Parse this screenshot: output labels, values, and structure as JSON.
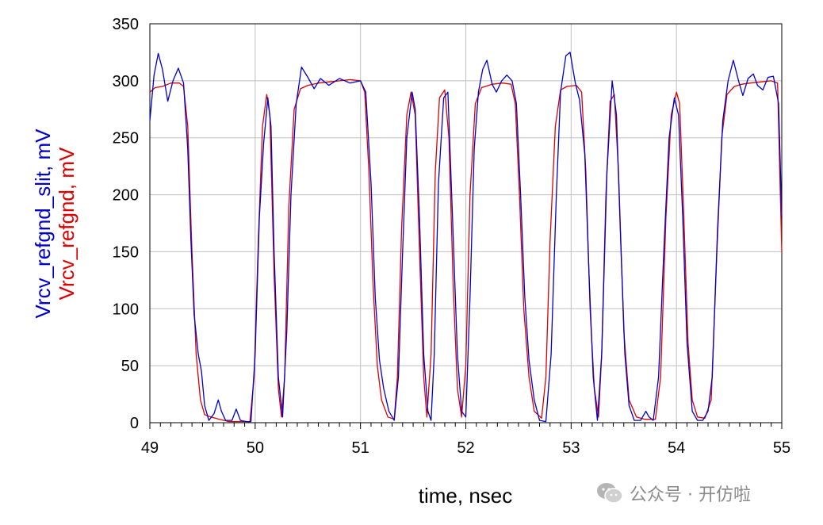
{
  "chart_data": {
    "type": "line",
    "xlabel": "time, nsec",
    "ylabels": [
      "Vrcv_refgnd_slit, mV",
      "Vrcv_refgnd, mV"
    ],
    "xlim": [
      49,
      55
    ],
    "ylim": [
      0,
      350
    ],
    "xticks": [
      "49",
      "50",
      "51",
      "52",
      "53",
      "54",
      "55"
    ],
    "yticks": [
      "0",
      "50",
      "100",
      "150",
      "200",
      "250",
      "300",
      "350"
    ],
    "grid": true,
    "series": [
      {
        "name": "Vrcv_refgnd_slit, mV",
        "color": "#0000cc",
        "points": [
          [
            49.0,
            265
          ],
          [
            49.04,
            305
          ],
          [
            49.08,
            324
          ],
          [
            49.12,
            310
          ],
          [
            49.17,
            282
          ],
          [
            49.22,
            300
          ],
          [
            49.27,
            311
          ],
          [
            49.32,
            298
          ],
          [
            49.36,
            240
          ],
          [
            49.39,
            160
          ],
          [
            49.42,
            95
          ],
          [
            49.46,
            60
          ],
          [
            49.49,
            45
          ],
          [
            49.52,
            15
          ],
          [
            49.56,
            2
          ],
          [
            49.61,
            8
          ],
          [
            49.65,
            20
          ],
          [
            49.68,
            10
          ],
          [
            49.72,
            2
          ],
          [
            49.78,
            2
          ],
          [
            49.82,
            12
          ],
          [
            49.86,
            2
          ],
          [
            49.92,
            1
          ],
          [
            49.96,
            1
          ],
          [
            50.0,
            60
          ],
          [
            50.04,
            180
          ],
          [
            50.08,
            245
          ],
          [
            50.12,
            285
          ],
          [
            50.15,
            260
          ],
          [
            50.18,
            150
          ],
          [
            50.22,
            40
          ],
          [
            50.26,
            5
          ],
          [
            50.3,
            80
          ],
          [
            50.34,
            200
          ],
          [
            50.39,
            280
          ],
          [
            50.44,
            312
          ],
          [
            50.5,
            303
          ],
          [
            50.56,
            293
          ],
          [
            50.62,
            302
          ],
          [
            50.7,
            296
          ],
          [
            50.8,
            302
          ],
          [
            50.9,
            298
          ],
          [
            51.0,
            300
          ],
          [
            51.05,
            290
          ],
          [
            51.1,
            210
          ],
          [
            51.14,
            110
          ],
          [
            51.18,
            55
          ],
          [
            51.22,
            30
          ],
          [
            51.27,
            10
          ],
          [
            51.32,
            2
          ],
          [
            51.36,
            40
          ],
          [
            51.4,
            150
          ],
          [
            51.44,
            250
          ],
          [
            51.49,
            290
          ],
          [
            51.52,
            275
          ],
          [
            51.56,
            180
          ],
          [
            51.6,
            60
          ],
          [
            51.64,
            10
          ],
          [
            51.67,
            2
          ],
          [
            51.7,
            60
          ],
          [
            51.74,
            210
          ],
          [
            51.79,
            285
          ],
          [
            51.83,
            290
          ],
          [
            51.87,
            190
          ],
          [
            51.92,
            60
          ],
          [
            51.96,
            10
          ],
          [
            52.0,
            5
          ],
          [
            52.04,
            110
          ],
          [
            52.08,
            240
          ],
          [
            52.12,
            290
          ],
          [
            52.16,
            310
          ],
          [
            52.2,
            318
          ],
          [
            52.25,
            297
          ],
          [
            52.29,
            290
          ],
          [
            52.34,
            300
          ],
          [
            52.39,
            305
          ],
          [
            52.44,
            300
          ],
          [
            52.48,
            280
          ],
          [
            52.52,
            200
          ],
          [
            52.56,
            110
          ],
          [
            52.6,
            55
          ],
          [
            52.65,
            20
          ],
          [
            52.7,
            2
          ],
          [
            52.76,
            1
          ],
          [
            52.81,
            60
          ],
          [
            52.86,
            200
          ],
          [
            52.9,
            290
          ],
          [
            52.95,
            322
          ],
          [
            52.99,
            325
          ],
          [
            53.04,
            298
          ],
          [
            53.08,
            283
          ],
          [
            53.13,
            235
          ],
          [
            53.17,
            130
          ],
          [
            53.21,
            40
          ],
          [
            53.25,
            2
          ],
          [
            53.29,
            60
          ],
          [
            53.34,
            220
          ],
          [
            53.39,
            300
          ],
          [
            53.43,
            270
          ],
          [
            53.47,
            160
          ],
          [
            53.51,
            60
          ],
          [
            53.55,
            15
          ],
          [
            53.6,
            2
          ],
          [
            53.66,
            2
          ],
          [
            53.71,
            10
          ],
          [
            53.74,
            5
          ],
          [
            53.78,
            2
          ],
          [
            53.83,
            40
          ],
          [
            53.88,
            150
          ],
          [
            53.93,
            250
          ],
          [
            53.98,
            285
          ],
          [
            54.02,
            270
          ],
          [
            54.06,
            180
          ],
          [
            54.1,
            70
          ],
          [
            54.15,
            10
          ],
          [
            54.2,
            2
          ],
          [
            54.25,
            2
          ],
          [
            54.3,
            10
          ],
          [
            54.34,
            40
          ],
          [
            54.39,
            170
          ],
          [
            54.44,
            265
          ],
          [
            54.49,
            300
          ],
          [
            54.54,
            318
          ],
          [
            54.59,
            300
          ],
          [
            54.63,
            287
          ],
          [
            54.68,
            302
          ],
          [
            54.73,
            306
          ],
          [
            54.77,
            296
          ],
          [
            54.82,
            292
          ],
          [
            54.87,
            303
          ],
          [
            54.92,
            304
          ],
          [
            54.97,
            280
          ],
          [
            55.0,
            180
          ]
        ]
      },
      {
        "name": "Vrcv_refgnd, mV",
        "color": "#dd0000",
        "points": [
          [
            49.0,
            290
          ],
          [
            49.05,
            294
          ],
          [
            49.12,
            295
          ],
          [
            49.2,
            298
          ],
          [
            49.28,
            298
          ],
          [
            49.32,
            295
          ],
          [
            49.36,
            260
          ],
          [
            49.4,
            150
          ],
          [
            49.44,
            60
          ],
          [
            49.48,
            20
          ],
          [
            49.52,
            7
          ],
          [
            49.58,
            5
          ],
          [
            49.66,
            3
          ],
          [
            49.75,
            1
          ],
          [
            49.85,
            1
          ],
          [
            49.95,
            1
          ],
          [
            49.99,
            40
          ],
          [
            50.03,
            160
          ],
          [
            50.07,
            260
          ],
          [
            50.11,
            288
          ],
          [
            50.14,
            270
          ],
          [
            50.18,
            130
          ],
          [
            50.22,
            30
          ],
          [
            50.25,
            5
          ],
          [
            50.28,
            40
          ],
          [
            50.32,
            190
          ],
          [
            50.37,
            275
          ],
          [
            50.43,
            293
          ],
          [
            50.5,
            296
          ],
          [
            50.6,
            298
          ],
          [
            50.7,
            299
          ],
          [
            50.8,
            300
          ],
          [
            50.9,
            301
          ],
          [
            51.0,
            300
          ],
          [
            51.04,
            290
          ],
          [
            51.08,
            220
          ],
          [
            51.12,
            120
          ],
          [
            51.16,
            50
          ],
          [
            51.2,
            20
          ],
          [
            51.26,
            5
          ],
          [
            51.32,
            3
          ],
          [
            51.35,
            40
          ],
          [
            51.39,
            170
          ],
          [
            51.44,
            270
          ],
          [
            51.48,
            290
          ],
          [
            51.52,
            270
          ],
          [
            51.56,
            150
          ],
          [
            51.6,
            40
          ],
          [
            51.63,
            5
          ],
          [
            51.67,
            60
          ],
          [
            51.71,
            220
          ],
          [
            51.75,
            285
          ],
          [
            51.8,
            292
          ],
          [
            51.84,
            250
          ],
          [
            51.88,
            120
          ],
          [
            51.92,
            30
          ],
          [
            51.96,
            5
          ],
          [
            52.0,
            50
          ],
          [
            52.04,
            200
          ],
          [
            52.09,
            280
          ],
          [
            52.15,
            294
          ],
          [
            52.25,
            297
          ],
          [
            52.35,
            298
          ],
          [
            52.43,
            297
          ],
          [
            52.47,
            280
          ],
          [
            52.51,
            200
          ],
          [
            52.55,
            100
          ],
          [
            52.6,
            40
          ],
          [
            52.65,
            10
          ],
          [
            52.72,
            4
          ],
          [
            52.76,
            40
          ],
          [
            52.8,
            160
          ],
          [
            52.85,
            260
          ],
          [
            52.9,
            292
          ],
          [
            52.96,
            295
          ],
          [
            53.05,
            296
          ],
          [
            53.1,
            290
          ],
          [
            53.14,
            220
          ],
          [
            53.18,
            100
          ],
          [
            53.22,
            30
          ],
          [
            53.26,
            5
          ],
          [
            53.29,
            60
          ],
          [
            53.33,
            200
          ],
          [
            53.37,
            282
          ],
          [
            53.41,
            288
          ],
          [
            53.45,
            220
          ],
          [
            53.5,
            80
          ],
          [
            53.55,
            20
          ],
          [
            53.62,
            5
          ],
          [
            53.7,
            3
          ],
          [
            53.8,
            3
          ],
          [
            53.85,
            40
          ],
          [
            53.9,
            180
          ],
          [
            53.95,
            270
          ],
          [
            54.0,
            290
          ],
          [
            54.03,
            280
          ],
          [
            54.07,
            180
          ],
          [
            54.11,
            70
          ],
          [
            54.15,
            20
          ],
          [
            54.2,
            5
          ],
          [
            54.27,
            4
          ],
          [
            54.33,
            20
          ],
          [
            54.38,
            140
          ],
          [
            54.43,
            250
          ],
          [
            54.48,
            288
          ],
          [
            54.55,
            295
          ],
          [
            54.62,
            297
          ],
          [
            54.7,
            298
          ],
          [
            54.8,
            299
          ],
          [
            54.9,
            300
          ],
          [
            54.96,
            298
          ],
          [
            55.0,
            150
          ]
        ]
      }
    ]
  },
  "watermark": {
    "text": "公众号 · 开仿啦",
    "icon": "wechat-icon"
  }
}
